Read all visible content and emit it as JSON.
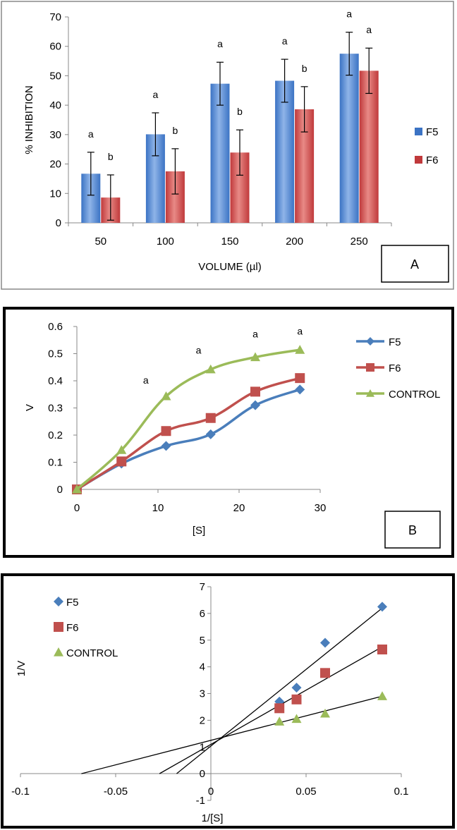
{
  "chart_data": [
    {
      "type": "bar",
      "panel_label": "A",
      "xlabel": "VOLUME (µl)",
      "ylabel": "% INHIBITION",
      "ylim": [
        0,
        70
      ],
      "yticks": [
        "0",
        "10",
        "20",
        "30",
        "40",
        "50",
        "60",
        "70"
      ],
      "categories": [
        "50",
        "100",
        "150",
        "200",
        "250"
      ],
      "series": [
        {
          "name": "F5",
          "color": "#3b73c4",
          "values": [
            16.7,
            30.1,
            47.3,
            48.3,
            57.5
          ],
          "errors": [
            7.3,
            7.3,
            7.3,
            7.3,
            7.3
          ],
          "sig": [
            "a",
            "a",
            "a",
            "a",
            "a"
          ]
        },
        {
          "name": "F6",
          "color": "#c0393b",
          "values": [
            8.6,
            17.5,
            23.9,
            38.6,
            51.7
          ],
          "errors": [
            7.7,
            7.7,
            7.7,
            7.7,
            7.7
          ],
          "sig": [
            "b",
            "b",
            "b",
            "b",
            "a"
          ]
        }
      ]
    },
    {
      "type": "line",
      "panel_label": "B",
      "xlabel": "[S]",
      "ylabel": "V",
      "xlim": [
        0,
        30
      ],
      "ylim": [
        0,
        0.6
      ],
      "xticks": [
        "0",
        "10",
        "20",
        "30"
      ],
      "yticks": [
        "0",
        "0.1",
        "0.2",
        "0.3",
        "0.4",
        "0.5",
        "0.6"
      ],
      "x": [
        0,
        5.5,
        11,
        16.5,
        22,
        27.5
      ],
      "series": [
        {
          "name": "F5",
          "color": "#4a7ebb",
          "marker": "diamond",
          "values": [
            0,
            0.095,
            0.16,
            0.203,
            0.31,
            0.368
          ]
        },
        {
          "name": "F6",
          "color": "#c0504d",
          "marker": "square",
          "values": [
            0,
            0.103,
            0.215,
            0.263,
            0.36,
            0.41
          ]
        },
        {
          "name": "CONTROL",
          "color": "#9bbb59",
          "marker": "triangle",
          "values": [
            0,
            0.145,
            0.343,
            0.442,
            0.487,
            0.514
          ]
        }
      ],
      "annotations": [
        {
          "text": "a",
          "x": 8.5,
          "y": 0.39
        },
        {
          "text": "a",
          "x": 15,
          "y": 0.5
        },
        {
          "text": "a",
          "x": 22,
          "y": 0.56
        },
        {
          "text": "a",
          "x": 27.5,
          "y": 0.57
        }
      ]
    },
    {
      "type": "scatter",
      "panel_label": "",
      "xlabel": "1/[S]",
      "ylabel": "1/V",
      "xlim": [
        -0.1,
        0.1
      ],
      "ylim": [
        -1,
        7
      ],
      "xticks": [
        "-0.1",
        "-0.05",
        "0",
        "0.05",
        "0.1"
      ],
      "yticks": [
        "-1",
        "0",
        "1",
        "2",
        "3",
        "4",
        "5",
        "6",
        "7"
      ],
      "series": [
        {
          "name": "F5",
          "color": "#4a7ebb",
          "marker": "diamond",
          "x": [
            0.036,
            0.045,
            0.06,
            0.09
          ],
          "values": [
            2.7,
            3.22,
            4.9,
            6.25
          ]
        },
        {
          "name": "F6",
          "color": "#c0504d",
          "marker": "square",
          "x": [
            0.036,
            0.045,
            0.06,
            0.09
          ],
          "values": [
            2.45,
            2.78,
            3.77,
            4.65
          ]
        },
        {
          "name": "CONTROL",
          "color": "#9bbb59",
          "marker": "triangle",
          "x": [
            0.036,
            0.045,
            0.06,
            0.09
          ],
          "values": [
            1.95,
            2.05,
            2.25,
            2.9
          ]
        }
      ],
      "trendlines": [
        {
          "series": "F5",
          "x": [
            -0.018,
            0.09
          ],
          "y": [
            0,
            6.2
          ]
        },
        {
          "series": "F6",
          "x": [
            -0.027,
            0.09
          ],
          "y": [
            0,
            4.75
          ]
        },
        {
          "series": "CONTROL",
          "x": [
            -0.068,
            0.09
          ],
          "y": [
            0,
            2.9
          ]
        }
      ]
    }
  ]
}
